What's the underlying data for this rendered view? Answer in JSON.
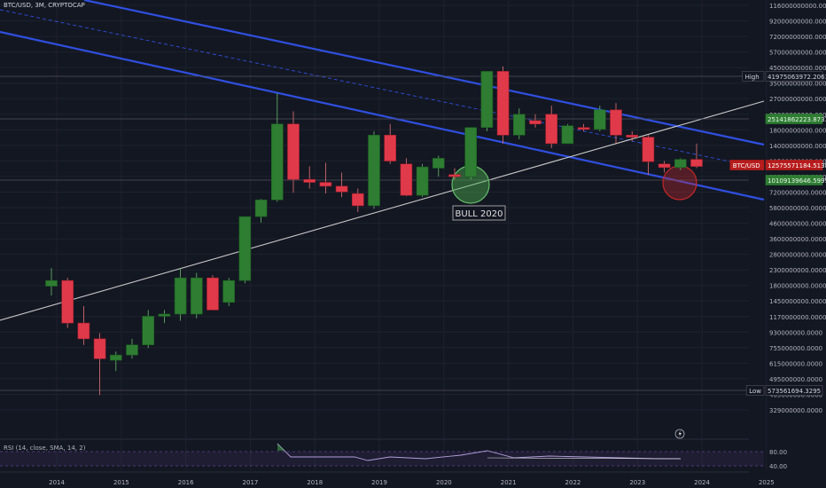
{
  "header": {
    "symbol_title": "BTC/USD, 3M, CRYPTOCAP"
  },
  "rsi": {
    "title": "RSI (14, close, SMA, 14, 2)",
    "ticks": [
      "80.00",
      "40.00"
    ]
  },
  "colors": {
    "background": "#131722",
    "up": "#26a69a",
    "up_fill": "#2e7d32",
    "down": "#e03a4a",
    "channel": "#2f4fe0",
    "trendline": "#c8c8c8",
    "rsi": "#b39ddb"
  },
  "annotations": {
    "bull_label": "BULL 2020",
    "lightning_icon": "lightning-icon"
  },
  "chart_data": {
    "type": "candlestick",
    "title": "BTC/USD, 3M, CRYPTOCAP",
    "y_scale": "log",
    "x_ticks": [
      "2014",
      "2015",
      "2016",
      "2017",
      "2018",
      "2019",
      "2020",
      "2021",
      "2022",
      "2023",
      "2024",
      "2025"
    ],
    "y_ticks": [
      "116000000000.0000",
      "92000000000.0000",
      "72000000000.0000",
      "57000000000.0000",
      "45000000000.0000",
      "35000000000.0000",
      "27000000000.0000",
      "22000000000.0000",
      "18000000000.0000",
      "14000000000.0000",
      "11500000000.0000",
      "9100000000.0000",
      "7200000000.0000",
      "5800000000.0000",
      "4600000000.0000",
      "3600000000.0000",
      "2800000000.0000",
      "2300000000.0000",
      "1800000000.0000",
      "1450000000.0000",
      "1170000000.0000",
      "930000000.0000",
      "755000000.0000",
      "615000000.0000",
      "495000000.0000",
      "405000000.0000",
      "329000000.0000"
    ],
    "price_labels": [
      {
        "text": "High",
        "value": "41975063972.2063"
      },
      {
        "text": "",
        "value": "25141862223.8733"
      },
      {
        "text": "BTC/USD",
        "value": "12575571184.5138"
      },
      {
        "text": "",
        "value": "10109139646.5999"
      },
      {
        "text": "Low",
        "value": "573561694.3295"
      }
    ],
    "candles": [
      {
        "t": "2013-12",
        "o": 2.6,
        "h": 3.3,
        "l": 2.3,
        "c": 2.8
      },
      {
        "t": "2014-03",
        "o": 2.8,
        "h": 2.9,
        "l": 1.5,
        "c": 1.6
      },
      {
        "t": "2014-06",
        "o": 1.6,
        "h": 2.0,
        "l": 1.2,
        "c": 1.3
      },
      {
        "t": "2014-09",
        "o": 1.3,
        "h": 1.4,
        "l": 0.62,
        "c": 1.0
      },
      {
        "t": "2014-12",
        "o": 0.98,
        "h": 1.1,
        "l": 0.85,
        "c": 1.05
      },
      {
        "t": "2015-03",
        "o": 1.05,
        "h": 1.3,
        "l": 1.0,
        "c": 1.2
      },
      {
        "t": "2015-06",
        "o": 1.2,
        "h": 1.9,
        "l": 1.15,
        "c": 1.75
      },
      {
        "t": "2015-09",
        "o": 1.75,
        "h": 1.9,
        "l": 1.6,
        "c": 1.8
      },
      {
        "t": "2015-12",
        "o": 1.8,
        "h": 3.3,
        "l": 1.65,
        "c": 2.9
      },
      {
        "t": "2016-03",
        "o": 1.8,
        "h": 3.1,
        "l": 1.7,
        "c": 2.9
      },
      {
        "t": "2016-06",
        "o": 2.9,
        "h": 3.0,
        "l": 1.9,
        "c": 1.9
      },
      {
        "t": "2016-09",
        "o": 2.1,
        "h": 2.9,
        "l": 2.0,
        "c": 2.8
      },
      {
        "t": "2016-12",
        "o": 2.8,
        "h": 6.5,
        "l": 2.7,
        "c": 6.5
      },
      {
        "t": "2017-03",
        "o": 6.5,
        "h": 8.2,
        "l": 6.0,
        "c": 8.1
      },
      {
        "t": "2017-06",
        "o": 8.1,
        "h": 33,
        "l": 7.9,
        "c": 22
      },
      {
        "t": "2017-09",
        "o": 22,
        "h": 26,
        "l": 8.9,
        "c": 10.6
      },
      {
        "t": "2017-12",
        "o": 10.6,
        "h": 12.6,
        "l": 9.4,
        "c": 10.2
      },
      {
        "t": "2018-03",
        "o": 10.2,
        "h": 13.2,
        "l": 8.8,
        "c": 9.7
      },
      {
        "t": "2018-06",
        "o": 9.7,
        "h": 11.6,
        "l": 8.4,
        "c": 9.0
      },
      {
        "t": "2018-09",
        "o": 8.8,
        "h": 9.4,
        "l": 6.9,
        "c": 7.5
      },
      {
        "t": "2018-12",
        "o": 7.5,
        "h": 20,
        "l": 7.2,
        "c": 19
      },
      {
        "t": "2019-03",
        "o": 19,
        "h": 22,
        "l": 13,
        "c": 13.5
      },
      {
        "t": "2019-06",
        "o": 13,
        "h": 14,
        "l": 8.5,
        "c": 8.6
      },
      {
        "t": "2019-09",
        "o": 8.6,
        "h": 13,
        "l": 8.4,
        "c": 12.5
      },
      {
        "t": "2019-12",
        "o": 12.3,
        "h": 14.5,
        "l": 11,
        "c": 14
      },
      {
        "t": "2020-03",
        "o": 11.3,
        "h": 12.3,
        "l": 10.6,
        "c": 11
      },
      {
        "t": "2020-06",
        "o": 11,
        "h": 21,
        "l": 10.6,
        "c": 21
      },
      {
        "t": "2020-09",
        "o": 21,
        "h": 44,
        "l": 20,
        "c": 44
      },
      {
        "t": "2020-12",
        "o": 44,
        "h": 47,
        "l": 17,
        "c": 19
      },
      {
        "t": "2021-03",
        "o": 19,
        "h": 27,
        "l": 18,
        "c": 25
      },
      {
        "t": "2021-06",
        "o": 23,
        "h": 25,
        "l": 21,
        "c": 22
      },
      {
        "t": "2021-09",
        "o": 25,
        "h": 28,
        "l": 16,
        "c": 17
      },
      {
        "t": "2021-12",
        "o": 17,
        "h": 22,
        "l": 17,
        "c": 21.5
      },
      {
        "t": "2022-03",
        "o": 21,
        "h": 22,
        "l": 20,
        "c": 20.5
      },
      {
        "t": "2022-06",
        "o": 20.5,
        "h": 28,
        "l": 20,
        "c": 26.5
      },
      {
        "t": "2022-09",
        "o": 26.5,
        "h": 29,
        "l": 17,
        "c": 19
      },
      {
        "t": "2022-12",
        "o": 19,
        "h": 20,
        "l": 17.5,
        "c": 18.5
      },
      {
        "t": "2023-03",
        "o": 18.5,
        "h": 19,
        "l": 11.3,
        "c": 13.4
      },
      {
        "t": "2023-06",
        "o": 13,
        "h": 13.5,
        "l": 11.6,
        "c": 12.4
      },
      {
        "t": "2023-09",
        "o": 12.4,
        "h": 14,
        "l": 12,
        "c": 13.8
      },
      {
        "t": "2023-12",
        "o": 13.8,
        "h": 17,
        "l": 12.3,
        "c": 12.58
      }
    ]
  }
}
